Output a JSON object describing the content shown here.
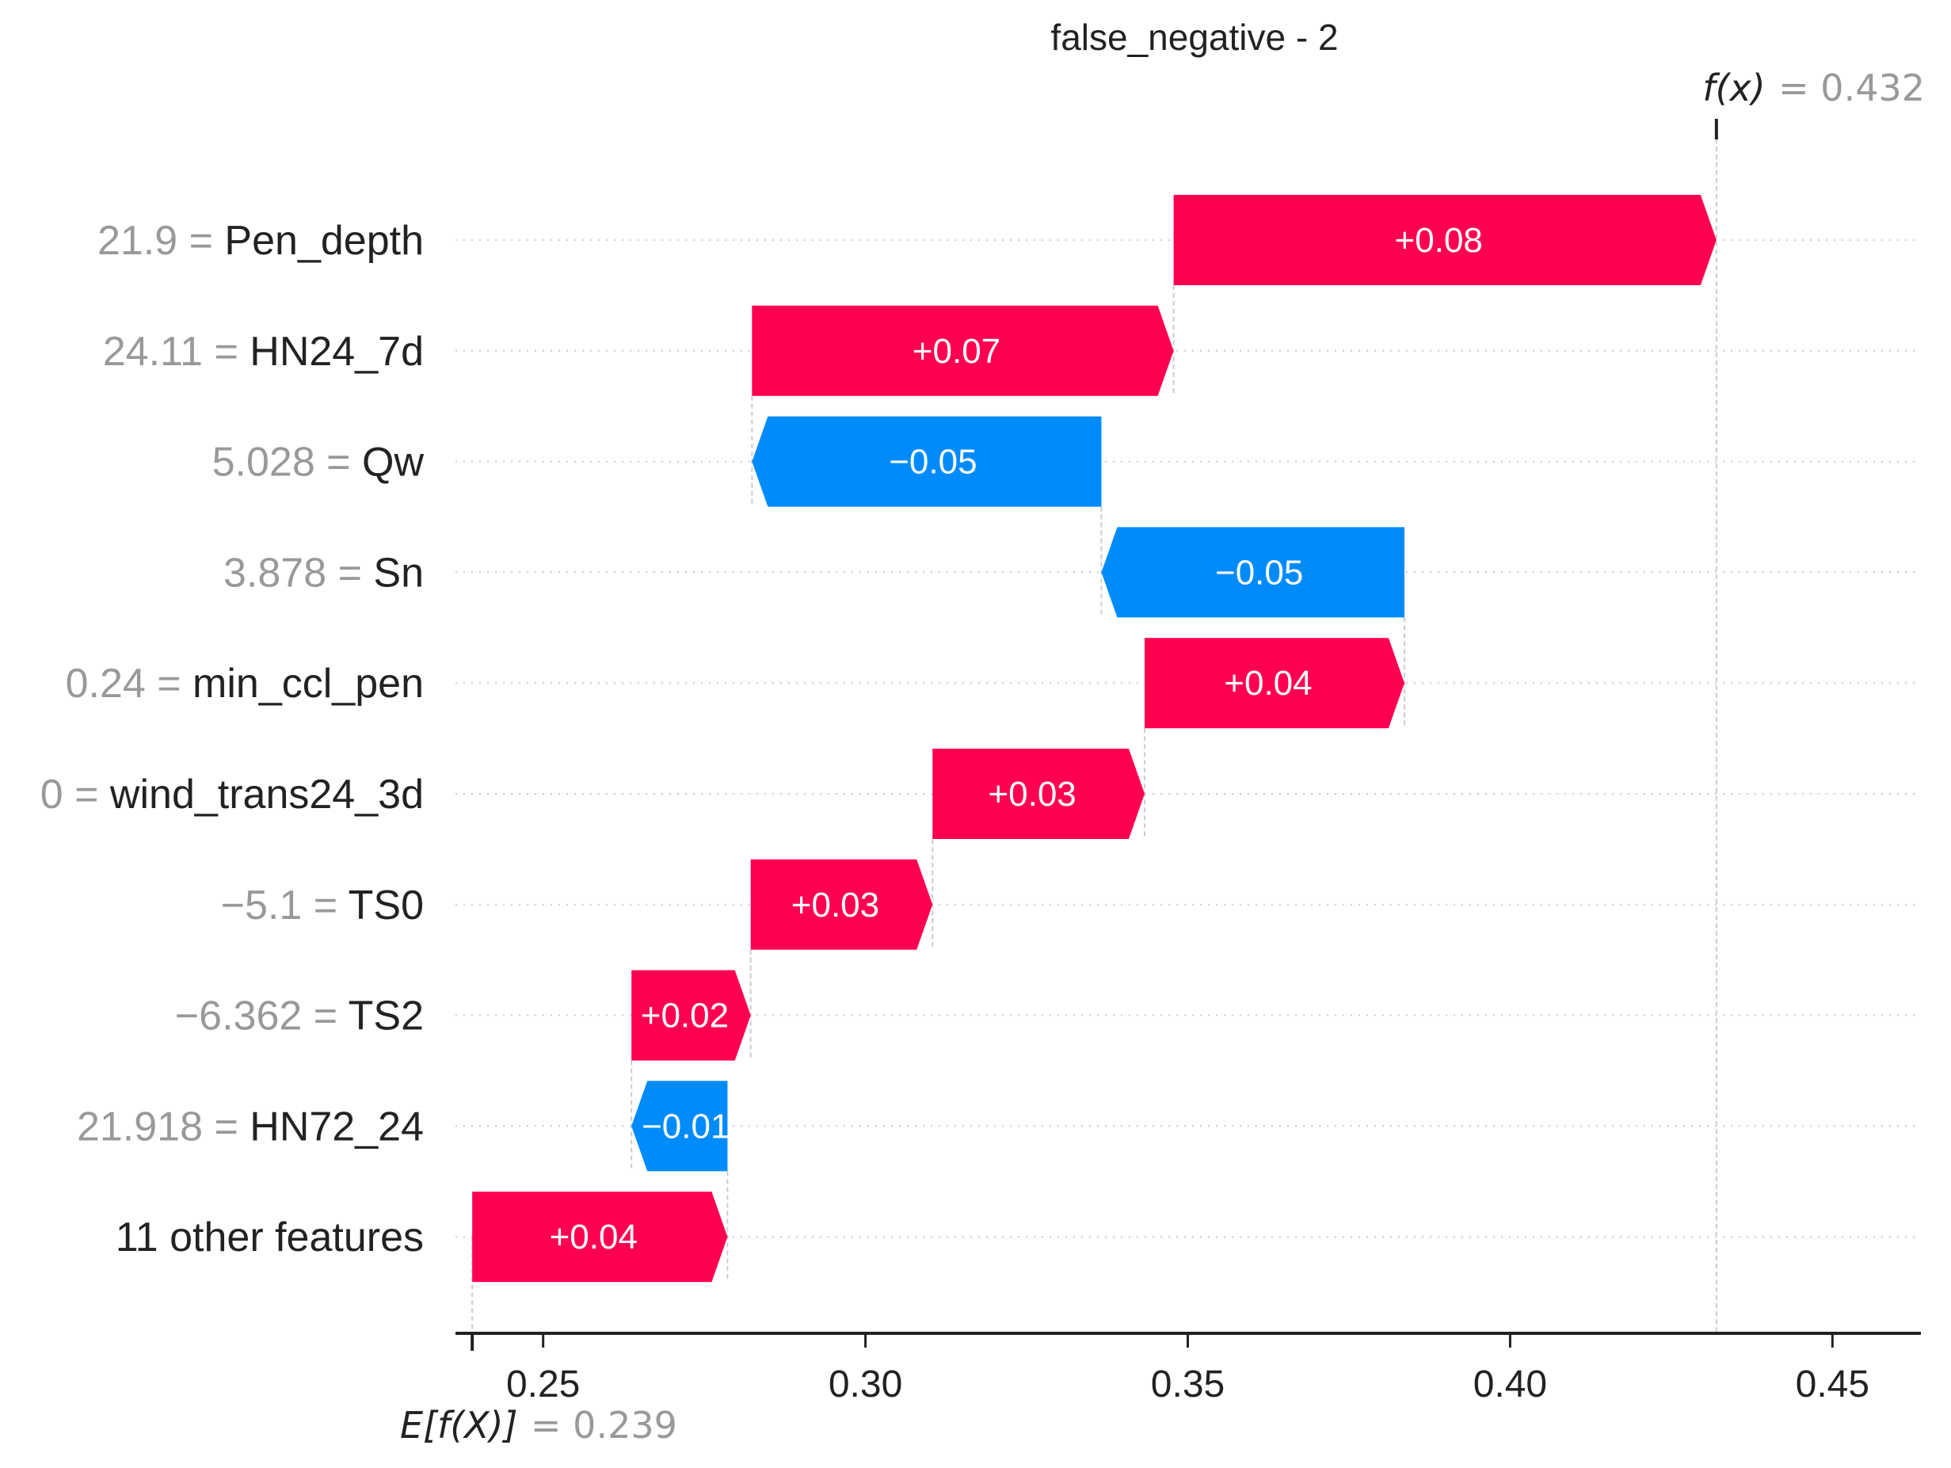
{
  "chart_data": {
    "type": "waterfall",
    "title": "false_negative - 2",
    "base_value": 0.239,
    "output_value": 0.432,
    "base_label_text": "E[f(X)]",
    "output_label_text": "f(x)",
    "base_value_text": "= 0.239",
    "output_value_text": "= 0.432",
    "xlim": [
      0.238,
      0.462
    ],
    "x_ticks": [
      {
        "value": 0.25,
        "label": "0.25"
      },
      {
        "value": 0.3,
        "label": "0.30"
      },
      {
        "value": 0.35,
        "label": "0.35"
      },
      {
        "value": 0.4,
        "label": "0.40"
      },
      {
        "value": 0.45,
        "label": "0.45"
      }
    ],
    "colors": {
      "positive": "#ff0051",
      "negative": "#008bfb",
      "axis": "#222222",
      "grid": "#cccccc",
      "muted": "#999999"
    },
    "features": [
      {
        "value_text": "21.9 =",
        "name": "Pen_depth",
        "start": 0.3478,
        "end": 0.432,
        "label": "+0.08"
      },
      {
        "value_text": "24.11 =",
        "name": "HN24_7d",
        "start": 0.2824,
        "end": 0.3478,
        "label": "+0.07"
      },
      {
        "value_text": "5.028 =",
        "name": "Qw",
        "start": 0.3366,
        "end": 0.2824,
        "label": "−0.05"
      },
      {
        "value_text": "3.878 =",
        "name": "Sn",
        "start": 0.3836,
        "end": 0.3366,
        "label": "−0.05"
      },
      {
        "value_text": "0.24 =",
        "name": "min_ccl_pen",
        "start": 0.3433,
        "end": 0.3836,
        "label": "+0.04"
      },
      {
        "value_text": "0 =",
        "name": "wind_trans24_3d",
        "start": 0.3104,
        "end": 0.3433,
        "label": "+0.03"
      },
      {
        "value_text": "−5.1 =",
        "name": "TS0",
        "start": 0.2822,
        "end": 0.3104,
        "label": "+0.03"
      },
      {
        "value_text": "−6.362 =",
        "name": "TS2",
        "start": 0.2637,
        "end": 0.2822,
        "label": "+0.02"
      },
      {
        "value_text": "21.918 =",
        "name": "HN72_24",
        "start": 0.2786,
        "end": 0.2637,
        "label": "−0.01"
      },
      {
        "value_text": "",
        "name": "11 other features",
        "start": 0.239,
        "end": 0.2786,
        "label": "+0.04"
      }
    ]
  }
}
